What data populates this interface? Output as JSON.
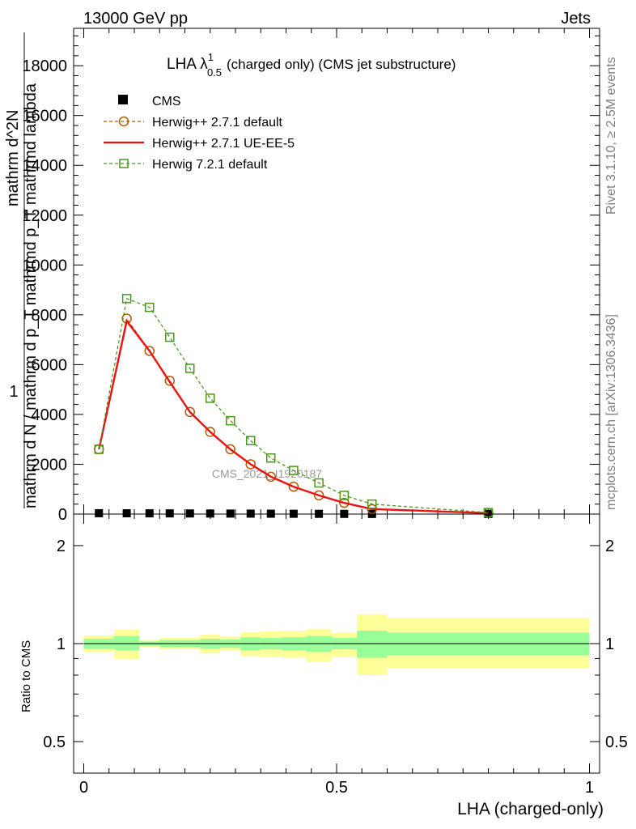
{
  "header": {
    "energy_label": "13000 GeV pp",
    "category_label": "Jets"
  },
  "side_labels": {
    "rivet": "Rivet 3.1.10, ≥ 2.5M events",
    "mcplots": "mcplots.cern.ch [arXiv:1306.3436]"
  },
  "chart_data": [
    {
      "type": "line",
      "panel": "main",
      "title_main": "LHA λ",
      "title_sup": "1",
      "title_sub": "0.5",
      "title_rest": "(charged only) (CMS jet substructure)",
      "ylabel_top": "1",
      "ylabel_bottom": "mathrm d N / mathrm d p_T mathrmd p_T mathrmd lambda",
      "ylabel_numerator": "mathrm d^2N",
      "ylabel_subscript": "T",
      "watermark": "CMS_2021_I1920187",
      "xlim": [
        -0.02,
        1.02
      ],
      "ylim": [
        0,
        19500
      ],
      "yticks": [
        0,
        2000,
        4000,
        6000,
        8000,
        10000,
        12000,
        14000,
        16000,
        18000
      ],
      "ytick_labels": [
        "0",
        "2000",
        "4000",
        "6000",
        "8000",
        "10000",
        "12000",
        "14000",
        "16000",
        "18000"
      ],
      "legend_position": "top-left",
      "series": [
        {
          "name": "CMS",
          "color": "#000000",
          "style": "markers",
          "x": [
            0.03,
            0.085,
            0.13,
            0.17,
            0.21,
            0.25,
            0.29,
            0.33,
            0.37,
            0.415,
            0.465,
            0.515,
            0.57,
            0.8
          ],
          "y": [
            35,
            32,
            30,
            28,
            25,
            22,
            20,
            18,
            15,
            12,
            10,
            8,
            5,
            2
          ]
        },
        {
          "name": "Herwig++ 2.7.1 default",
          "color": "#b35900",
          "style": "dashed-circle",
          "x": [
            0.03,
            0.085,
            0.13,
            0.17,
            0.21,
            0.25,
            0.29,
            0.33,
            0.37,
            0.415,
            0.465,
            0.515,
            0.57,
            0.8
          ],
          "y": [
            2600,
            7850,
            6550,
            5350,
            4100,
            3300,
            2600,
            2000,
            1500,
            1100,
            750,
            450,
            200,
            40
          ]
        },
        {
          "name": "Herwig++ 2.7.1 UE-EE-5",
          "color": "#ee1111",
          "style": "solid",
          "x": [
            0.03,
            0.085,
            0.13,
            0.17,
            0.21,
            0.25,
            0.29,
            0.33,
            0.37,
            0.415,
            0.465,
            0.515,
            0.57,
            0.8
          ],
          "y": [
            2600,
            7750,
            6550,
            5300,
            4100,
            3300,
            2600,
            2000,
            1500,
            1100,
            750,
            450,
            200,
            40
          ]
        },
        {
          "name": "Herwig 7.2.1 default",
          "color": "#4a9a1a",
          "style": "dashed-square",
          "x": [
            0.03,
            0.085,
            0.13,
            0.17,
            0.21,
            0.25,
            0.29,
            0.33,
            0.37,
            0.415,
            0.465,
            0.515,
            0.57,
            0.8
          ],
          "y": [
            2600,
            8650,
            8300,
            7100,
            5850,
            4650,
            3750,
            2950,
            2250,
            1750,
            1250,
            750,
            400,
            60
          ]
        }
      ]
    },
    {
      "type": "area",
      "panel": "ratio",
      "ylabel": "Ratio to CMS",
      "xlabel": "LHA (charged-only)",
      "xlim": [
        -0.02,
        1.02
      ],
      "ylim": [
        0.4,
        2.5
      ],
      "log_y": true,
      "xticks": [
        0,
        0.5,
        1
      ],
      "xtick_labels": [
        "0",
        "0.5",
        "1"
      ],
      "yticks": [
        0.5,
        1,
        2
      ],
      "ytick_labels": [
        "0.5",
        "1",
        "2"
      ],
      "reference_line": 1,
      "bins": [
        {
          "lo": 0.0,
          "hi": 0.06,
          "stat_lo": 0.965,
          "stat_hi": 1.035,
          "tot_lo": 0.945,
          "tot_hi": 1.06
        },
        {
          "lo": 0.06,
          "hi": 0.11,
          "stat_lo": 0.955,
          "stat_hi": 1.055,
          "tot_lo": 0.895,
          "tot_hi": 1.105
        },
        {
          "lo": 0.11,
          "hi": 0.15,
          "stat_lo": 0.985,
          "stat_hi": 1.015,
          "tot_lo": 0.975,
          "tot_hi": 1.025
        },
        {
          "lo": 0.15,
          "hi": 0.19,
          "stat_lo": 0.975,
          "stat_hi": 1.025,
          "tot_lo": 0.96,
          "tot_hi": 1.04
        },
        {
          "lo": 0.19,
          "hi": 0.23,
          "stat_lo": 0.975,
          "stat_hi": 1.025,
          "tot_lo": 0.96,
          "tot_hi": 1.04
        },
        {
          "lo": 0.23,
          "hi": 0.27,
          "stat_lo": 0.965,
          "stat_hi": 1.035,
          "tot_lo": 0.935,
          "tot_hi": 1.065
        },
        {
          "lo": 0.27,
          "hi": 0.31,
          "stat_lo": 0.97,
          "stat_hi": 1.03,
          "tot_lo": 0.95,
          "tot_hi": 1.05
        },
        {
          "lo": 0.31,
          "hi": 0.35,
          "stat_lo": 0.955,
          "stat_hi": 1.045,
          "tot_lo": 0.915,
          "tot_hi": 1.085
        },
        {
          "lo": 0.35,
          "hi": 0.39,
          "stat_lo": 0.96,
          "stat_hi": 1.04,
          "tot_lo": 0.91,
          "tot_hi": 1.09
        },
        {
          "lo": 0.39,
          "hi": 0.44,
          "stat_lo": 0.955,
          "stat_hi": 1.045,
          "tot_lo": 0.905,
          "tot_hi": 1.095
        },
        {
          "lo": 0.44,
          "hi": 0.49,
          "stat_lo": 0.945,
          "stat_hi": 1.055,
          "tot_lo": 0.88,
          "tot_hi": 1.11
        },
        {
          "lo": 0.49,
          "hi": 0.54,
          "stat_lo": 0.96,
          "stat_hi": 1.04,
          "tot_lo": 0.91,
          "tot_hi": 1.08
        },
        {
          "lo": 0.54,
          "hi": 0.6,
          "stat_lo": 0.905,
          "stat_hi": 1.095,
          "tot_lo": 0.8,
          "tot_hi": 1.23
        },
        {
          "lo": 0.6,
          "hi": 1.0,
          "stat_lo": 0.92,
          "stat_hi": 1.08,
          "tot_lo": 0.84,
          "tot_hi": 1.2
        }
      ],
      "stat_color": "#99ff99",
      "total_color": "#ffff99"
    }
  ]
}
